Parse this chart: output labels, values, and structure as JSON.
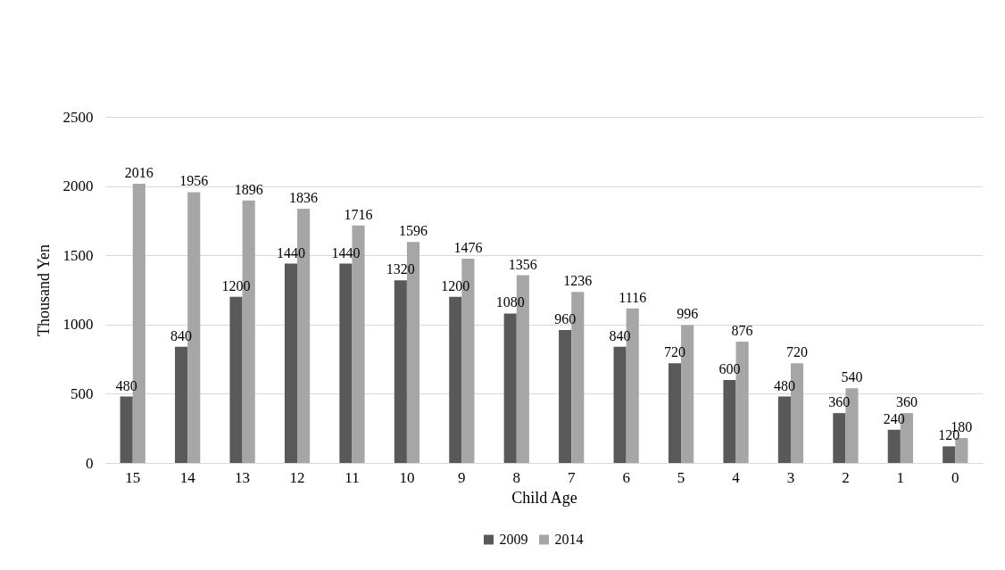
{
  "chart_data": {
    "type": "bar",
    "xlabel": "Child Age",
    "ylabel": "Thousand Yen",
    "categories": [
      "15",
      "14",
      "13",
      "12",
      "11",
      "10",
      "9",
      "8",
      "7",
      "6",
      "5",
      "4",
      "3",
      "2",
      "1",
      "0"
    ],
    "series": [
      {
        "name": "2009",
        "color": "#595959",
        "values": [
          480,
          840,
          1200,
          1440,
          1440,
          1320,
          1200,
          1080,
          960,
          840,
          720,
          600,
          480,
          360,
          240,
          120
        ]
      },
      {
        "name": "2014",
        "color": "#a6a6a6",
        "values": [
          2016,
          1956,
          1896,
          1836,
          1716,
          1596,
          1476,
          1356,
          1236,
          1116,
          996,
          876,
          720,
          540,
          360,
          180
        ]
      }
    ],
    "ylim": [
      0,
      2500
    ],
    "yticks": [
      0,
      500,
      1000,
      1500,
      2000,
      2500
    ],
    "grid": "y",
    "legend": "bottom",
    "data_labels": true
  }
}
